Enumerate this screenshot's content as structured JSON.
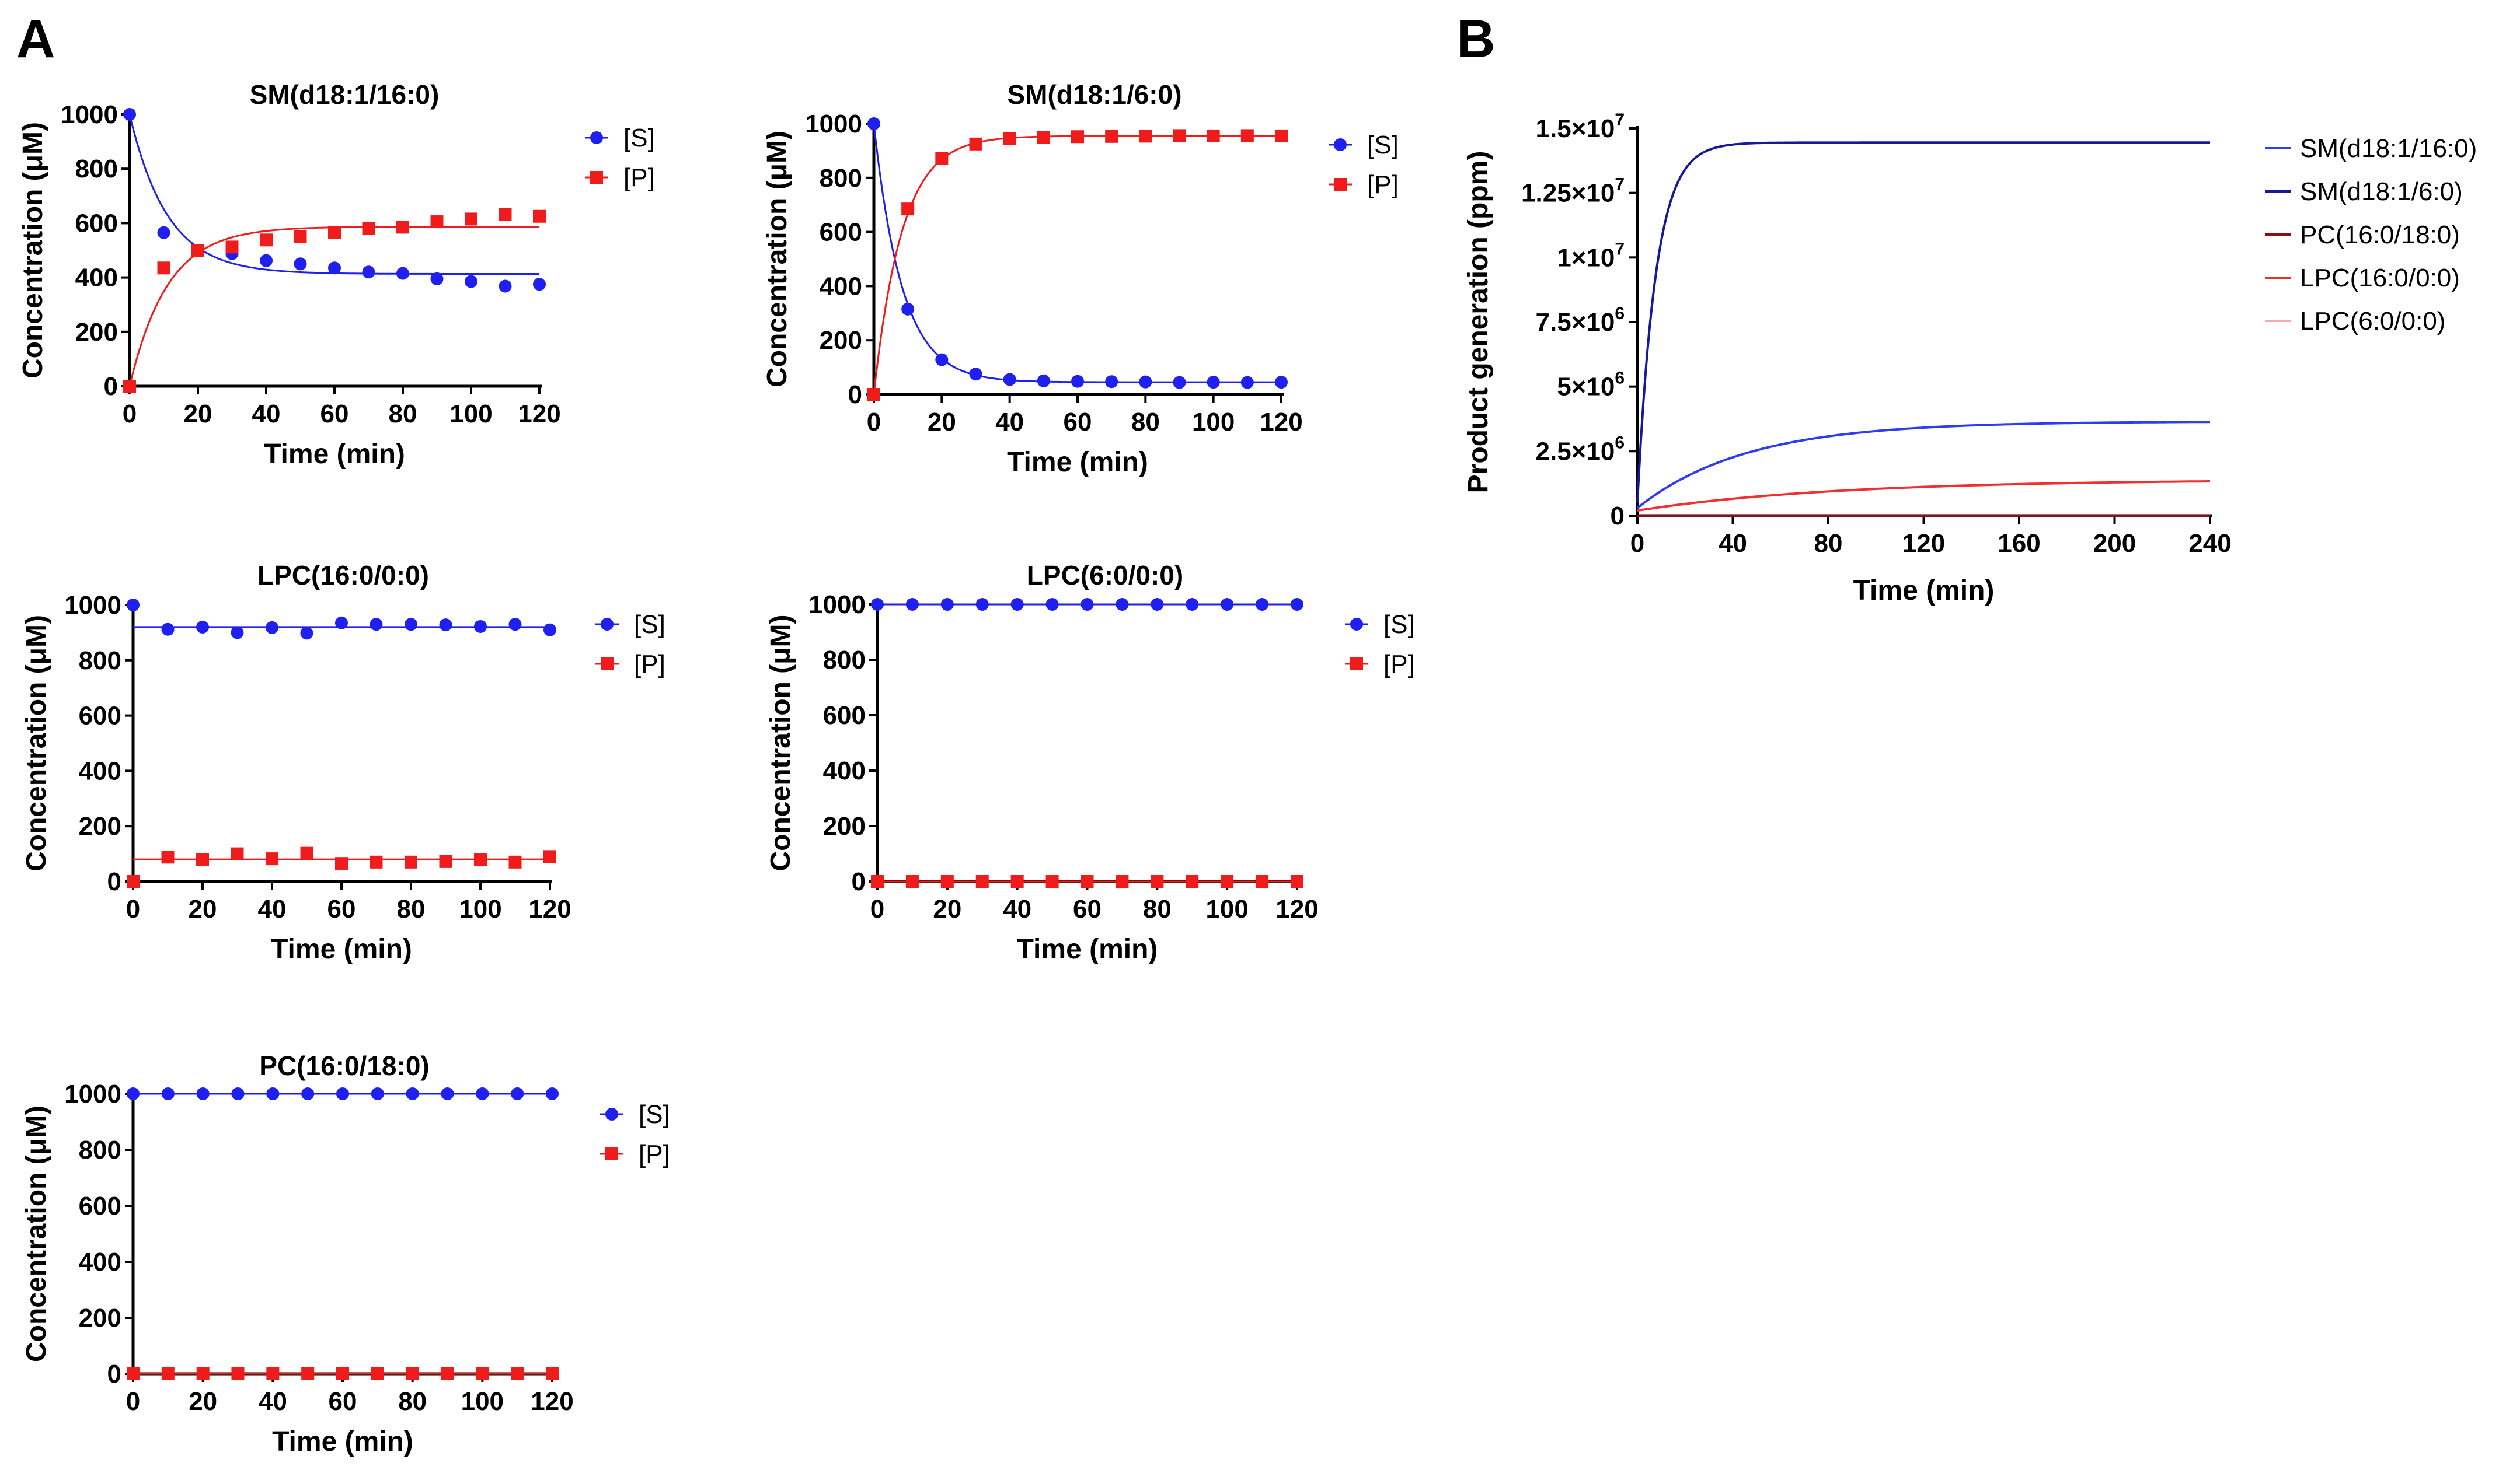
{
  "figure": {
    "panel_a_label": "A",
    "panel_b_label": "B"
  },
  "colors": {
    "substrate": "#1f1ff0",
    "product": "#f01c1c",
    "sm_16": "#2f3cf0",
    "sm_6": "#15199a",
    "pc": "#8b0f14",
    "lpc_16": "#f03030",
    "lpc_6": "#f9a9b2"
  },
  "chart_data": [
    {
      "type": "scatter",
      "title": "SM(d18:1/16:0)",
      "xlabel": "Time (min)",
      "ylabel": "Concentration (μM)",
      "xlim": [
        0,
        120
      ],
      "ylim": [
        0,
        1000
      ],
      "xticks": [
        0,
        20,
        40,
        60,
        80,
        100,
        120
      ],
      "yticks": [
        0,
        200,
        400,
        600,
        800,
        1000
      ],
      "legend": [
        "[S]",
        "[P]"
      ],
      "x": [
        0,
        10,
        20,
        30,
        40,
        50,
        60,
        70,
        80,
        90,
        100,
        110,
        120
      ],
      "series": [
        {
          "name": "[S]",
          "marker": "circle",
          "values": [
            1000,
            565,
            500,
            488,
            462,
            450,
            435,
            420,
            415,
            395,
            385,
            368,
            375
          ],
          "fit": {
            "model": "exp",
            "start": 1000,
            "plateau": 413,
            "k": 0.09
          }
        },
        {
          "name": "[P]",
          "marker": "square",
          "values": [
            0,
            435,
            500,
            512,
            538,
            550,
            565,
            580,
            585,
            605,
            615,
            632,
            625
          ],
          "fit": {
            "model": "exp",
            "start": 0,
            "plateau": 587,
            "k": 0.09
          }
        }
      ]
    },
    {
      "type": "scatter",
      "title": "SM(d18:1/6:0)",
      "xlabel": "Time (min)",
      "ylabel": "Concentration (μM)",
      "xlim": [
        0,
        120
      ],
      "ylim": [
        0,
        1000
      ],
      "xticks": [
        0,
        20,
        40,
        60,
        80,
        100,
        120
      ],
      "yticks": [
        0,
        200,
        400,
        600,
        800,
        1000
      ],
      "legend": [
        "[S]",
        "[P]"
      ],
      "x": [
        0,
        10,
        20,
        30,
        40,
        50,
        60,
        70,
        80,
        90,
        100,
        110,
        120
      ],
      "series": [
        {
          "name": "[S]",
          "marker": "circle",
          "values": [
            1000,
            315,
            128,
            75,
            55,
            50,
            48,
            47,
            46,
            44,
            45,
            44,
            45
          ],
          "fit": {
            "model": "exp",
            "start": 1000,
            "plateau": 45,
            "k": 0.12
          }
        },
        {
          "name": "[P]",
          "marker": "square",
          "values": [
            0,
            685,
            872,
            925,
            945,
            950,
            952,
            953,
            954,
            956,
            955,
            956,
            955
          ],
          "fit": {
            "model": "exp",
            "start": 0,
            "plateau": 955,
            "k": 0.12
          }
        }
      ]
    },
    {
      "type": "scatter",
      "title": "LPC(16:0/0:0)",
      "xlabel": "Time (min)",
      "ylabel": "Concentration (μM)",
      "xlim": [
        0,
        120
      ],
      "ylim": [
        0,
        1000
      ],
      "xticks": [
        0,
        20,
        40,
        60,
        80,
        100,
        120
      ],
      "yticks": [
        0,
        200,
        400,
        600,
        800,
        1000
      ],
      "legend": [
        "[S]",
        "[P]"
      ],
      "x": [
        0,
        10,
        20,
        30,
        40,
        50,
        60,
        70,
        80,
        90,
        100,
        110,
        120
      ],
      "series": [
        {
          "name": "[S]",
          "marker": "circle",
          "values": [
            1000,
            912,
            920,
            900,
            918,
            898,
            935,
            930,
            930,
            928,
            922,
            930,
            910
          ],
          "fit": {
            "model": "flat",
            "value": 920
          }
        },
        {
          "name": "[P]",
          "marker": "square",
          "values": [
            0,
            88,
            80,
            100,
            82,
            102,
            65,
            70,
            70,
            72,
            78,
            70,
            90
          ],
          "fit": {
            "model": "flat",
            "value": 80
          }
        }
      ]
    },
    {
      "type": "scatter",
      "title": "LPC(6:0/0:0)",
      "xlabel": "Time (min)",
      "ylabel": "Concentration (μM)",
      "xlim": [
        0,
        120
      ],
      "ylim": [
        0,
        1000
      ],
      "xticks": [
        0,
        20,
        40,
        60,
        80,
        100,
        120
      ],
      "yticks": [
        0,
        200,
        400,
        600,
        800,
        1000
      ],
      "legend": [
        "[S]",
        "[P]"
      ],
      "x": [
        0,
        10,
        20,
        30,
        40,
        50,
        60,
        70,
        80,
        90,
        100,
        110,
        120
      ],
      "series": [
        {
          "name": "[S]",
          "marker": "circle",
          "values": [
            1000,
            1000,
            1000,
            1000,
            1000,
            1000,
            1000,
            1000,
            1000,
            1000,
            1000,
            1000,
            1000
          ],
          "fit": {
            "model": "flat",
            "value": 1000
          }
        },
        {
          "name": "[P]",
          "marker": "square",
          "values": [
            0,
            0,
            0,
            0,
            0,
            0,
            0,
            0,
            0,
            0,
            0,
            0,
            0
          ],
          "fit": {
            "model": "flat",
            "value": 0
          }
        }
      ]
    },
    {
      "type": "scatter",
      "title": "PC(16:0/18:0)",
      "xlabel": "Time (min)",
      "ylabel": "Concentration (μM)",
      "xlim": [
        0,
        120
      ],
      "ylim": [
        0,
        1000
      ],
      "xticks": [
        0,
        20,
        40,
        60,
        80,
        100,
        120
      ],
      "yticks": [
        0,
        200,
        400,
        600,
        800,
        1000
      ],
      "legend": [
        "[S]",
        "[P]"
      ],
      "x": [
        0,
        10,
        20,
        30,
        40,
        50,
        60,
        70,
        80,
        90,
        100,
        110,
        120
      ],
      "series": [
        {
          "name": "[S]",
          "marker": "circle",
          "values": [
            1000,
            1000,
            1000,
            1000,
            1000,
            1000,
            1000,
            1000,
            1000,
            1000,
            1000,
            1000,
            1000
          ],
          "fit": {
            "model": "flat",
            "value": 1000
          }
        },
        {
          "name": "[P]",
          "marker": "square",
          "values": [
            0,
            0,
            0,
            0,
            0,
            0,
            0,
            0,
            0,
            0,
            0,
            0,
            0
          ],
          "fit": {
            "model": "flat",
            "value": 0
          }
        }
      ]
    },
    {
      "type": "line",
      "title": "",
      "xlabel": "Time (min)",
      "ylabel": "Product generation (ppm)",
      "xlim": [
        0,
        240
      ],
      "ylim": [
        0,
        15000000
      ],
      "xticks": [
        0,
        40,
        80,
        120,
        160,
        200,
        240
      ],
      "yticks": [
        {
          "value": 0,
          "base": "0",
          "exp": ""
        },
        {
          "value": 2500000,
          "base": "2.5×10",
          "exp": "6"
        },
        {
          "value": 5000000,
          "base": "5×10",
          "exp": "6"
        },
        {
          "value": 7500000,
          "base": "7.5×10",
          "exp": "6"
        },
        {
          "value": 10000000,
          "base": "1×10",
          "exp": "7"
        },
        {
          "value": 12500000,
          "base": "1.25×10",
          "exp": "7"
        },
        {
          "value": 15000000,
          "base": "1.5×10",
          "exp": "7"
        }
      ],
      "legend": [
        "SM(d18:1/16:0)",
        "SM(d18:1/6:0)",
        "PC(16:0/18:0)",
        "LPC(16:0/0:0)",
        "LPC(6:0/0:0)"
      ],
      "series": [
        {
          "name": "SM(d18:1/16:0)",
          "start": 300000,
          "plateau": 3650000,
          "k": 0.022
        },
        {
          "name": "SM(d18:1/6:0)",
          "start": 500000,
          "plateau": 14450000,
          "k": 0.13
        },
        {
          "name": "PC(16:0/18:0)",
          "start": 0,
          "plateau": 0,
          "k": 0.05
        },
        {
          "name": "LPC(16:0/0:0)",
          "start": 200000,
          "plateau": 1400000,
          "k": 0.012
        },
        {
          "name": "LPC(6:0/0:0)",
          "start": 0,
          "plateau": 0,
          "k": 0.05
        }
      ]
    }
  ]
}
